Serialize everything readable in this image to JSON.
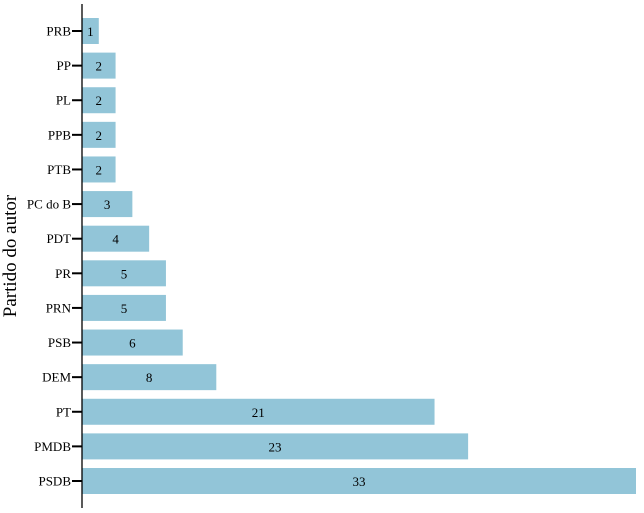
{
  "chart_data": {
    "type": "bar",
    "orientation": "horizontal",
    "ylabel": "Partido do autor",
    "xlabel": "",
    "title": "",
    "bar_color": "#92c5d8",
    "categories": [
      "PRB",
      "PP",
      "PL",
      "PPB",
      "PTB",
      "PC do B",
      "PDT",
      "PR",
      "PRN",
      "PSB",
      "DEM",
      "PT",
      "PMDB",
      "PSDB"
    ],
    "values": [
      1,
      2,
      2,
      2,
      2,
      3,
      4,
      5,
      5,
      6,
      8,
      21,
      23,
      33
    ],
    "xlim": [
      0,
      33
    ],
    "grid": false,
    "legend": "none"
  }
}
